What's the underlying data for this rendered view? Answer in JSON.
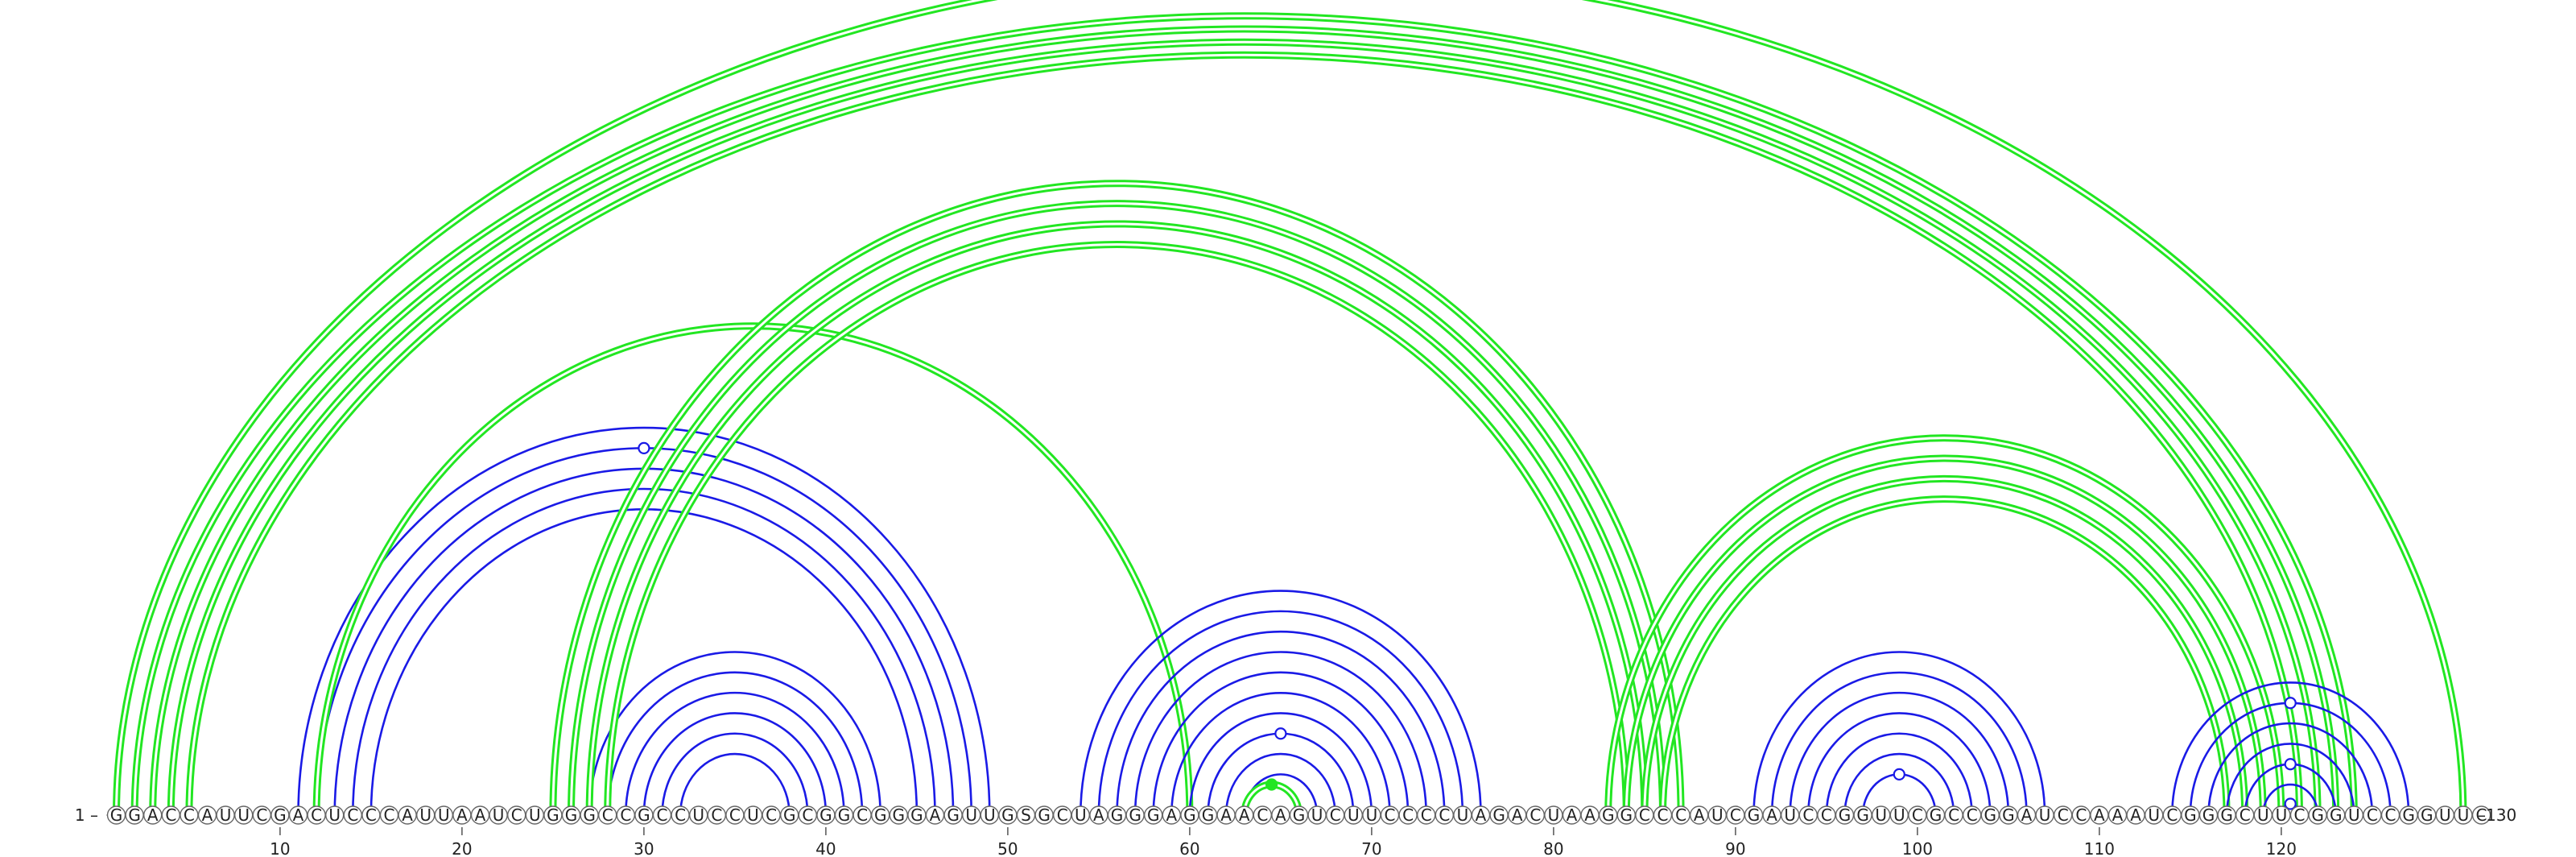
{
  "sequence": "GGACCAUUCGACUCCCAUUAAUCUGGGCCGCCUCCUCGCGGCGGGAGUUGSGCUAGGGAGGAACAGUCUUCCCCUAGACUAAGGCCCAUCGAUCCGGUUCGCCGGAUCCAAAUCGGGCUUCGGUCCGGUUC",
  "start_label": "1 –",
  "end_label": "–130",
  "ticks": [
    "10",
    "20",
    "30",
    "40",
    "50",
    "60",
    "70",
    "80",
    "90",
    "100",
    "110",
    "120"
  ],
  "colors": {
    "nested": "#1a1ae6",
    "pseudoknot": "#22e622"
  },
  "chart_data": {
    "type": "arc_diagram",
    "length": 130,
    "arcs": [
      {
        "i": 1,
        "j": 130,
        "class": "pseudoknot",
        "style": "double",
        "marker": "open"
      },
      {
        "i": 2,
        "j": 124,
        "class": "pseudoknot",
        "style": "double"
      },
      {
        "i": 3,
        "j": 123,
        "class": "pseudoknot",
        "style": "double"
      },
      {
        "i": 4,
        "j": 122,
        "class": "pseudoknot",
        "style": "double"
      },
      {
        "i": 5,
        "j": 121,
        "class": "pseudoknot",
        "style": "double"
      },
      {
        "i": 11,
        "j": 49,
        "class": "nested",
        "style": "single"
      },
      {
        "i": 12,
        "j": 48,
        "class": "nested",
        "style": "single",
        "marker": "open"
      },
      {
        "i": 13,
        "j": 47,
        "class": "nested",
        "style": "single"
      },
      {
        "i": 14,
        "j": 46,
        "class": "nested",
        "style": "single"
      },
      {
        "i": 15,
        "j": 45,
        "class": "nested",
        "style": "single"
      },
      {
        "i": 12,
        "j": 60,
        "class": "pseudoknot",
        "style": "double"
      },
      {
        "i": 27,
        "j": 43,
        "class": "nested",
        "style": "single"
      },
      {
        "i": 28,
        "j": 42,
        "class": "nested",
        "style": "single"
      },
      {
        "i": 29,
        "j": 41,
        "class": "nested",
        "style": "single"
      },
      {
        "i": 30,
        "j": 40,
        "class": "nested",
        "style": "single"
      },
      {
        "i": 31,
        "j": 39,
        "class": "nested",
        "style": "single"
      },
      {
        "i": 32,
        "j": 38,
        "class": "nested",
        "style": "single"
      },
      {
        "i": 25,
        "j": 87,
        "class": "pseudoknot",
        "style": "double"
      },
      {
        "i": 26,
        "j": 86,
        "class": "pseudoknot",
        "style": "double"
      },
      {
        "i": 27,
        "j": 85,
        "class": "pseudoknot",
        "style": "double"
      },
      {
        "i": 28,
        "j": 84,
        "class": "pseudoknot",
        "style": "double"
      },
      {
        "i": 54,
        "j": 76,
        "class": "nested",
        "style": "single"
      },
      {
        "i": 55,
        "j": 75,
        "class": "nested",
        "style": "single"
      },
      {
        "i": 56,
        "j": 74,
        "class": "nested",
        "style": "single"
      },
      {
        "i": 57,
        "j": 73,
        "class": "nested",
        "style": "single"
      },
      {
        "i": 58,
        "j": 72,
        "class": "nested",
        "style": "single"
      },
      {
        "i": 59,
        "j": 71,
        "class": "nested",
        "style": "single"
      },
      {
        "i": 60,
        "j": 70,
        "class": "nested",
        "style": "single"
      },
      {
        "i": 61,
        "j": 69,
        "class": "nested",
        "style": "single",
        "marker": "open"
      },
      {
        "i": 62,
        "j": 68,
        "class": "nested",
        "style": "single"
      },
      {
        "i": 63,
        "j": 67,
        "class": "nested",
        "style": "single"
      },
      {
        "i": 63,
        "j": 66,
        "class": "pseudoknot",
        "style": "double",
        "marker": "filled"
      },
      {
        "i": 83,
        "j": 120,
        "class": "pseudoknot",
        "style": "double"
      },
      {
        "i": 84,
        "j": 119,
        "class": "pseudoknot",
        "style": "double"
      },
      {
        "i": 85,
        "j": 118,
        "class": "pseudoknot",
        "style": "double"
      },
      {
        "i": 86,
        "j": 117,
        "class": "pseudoknot",
        "style": "double"
      },
      {
        "i": 91,
        "j": 107,
        "class": "nested",
        "style": "single"
      },
      {
        "i": 92,
        "j": 106,
        "class": "nested",
        "style": "single"
      },
      {
        "i": 93,
        "j": 105,
        "class": "nested",
        "style": "single"
      },
      {
        "i": 94,
        "j": 104,
        "class": "nested",
        "style": "single"
      },
      {
        "i": 95,
        "j": 103,
        "class": "nested",
        "style": "single"
      },
      {
        "i": 96,
        "j": 102,
        "class": "nested",
        "style": "single"
      },
      {
        "i": 97,
        "j": 101,
        "class": "nested",
        "style": "single",
        "marker": "open"
      },
      {
        "i": 114,
        "j": 127,
        "class": "nested",
        "style": "single"
      },
      {
        "i": 115,
        "j": 126,
        "class": "nested",
        "style": "single",
        "marker": "open"
      },
      {
        "i": 116,
        "j": 125,
        "class": "nested",
        "style": "single"
      },
      {
        "i": 117,
        "j": 124,
        "class": "nested",
        "style": "single"
      },
      {
        "i": 118,
        "j": 123,
        "class": "nested",
        "style": "single",
        "marker": "open"
      },
      {
        "i": 119,
        "j": 122,
        "class": "nested",
        "style": "single"
      },
      {
        "i": 120,
        "j": 121,
        "class": "nested",
        "style": "single",
        "marker": "open"
      }
    ]
  }
}
